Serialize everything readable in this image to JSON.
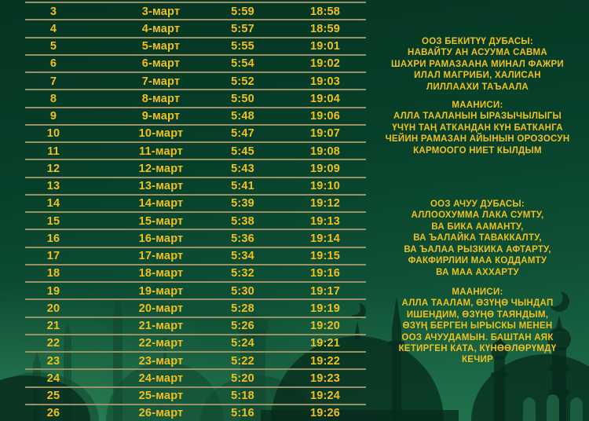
{
  "colors": {
    "background_top": "#053522",
    "background_bottom": "#1e6f4a",
    "text_gold": "#f0c01d",
    "row_line": "#9a9164",
    "silhouette_near": "#062c1c",
    "silhouette_far": "#11472f"
  },
  "schedule_table": {
    "rows": [
      {
        "day": "3",
        "date": "3-март",
        "suhoor": "5:59",
        "iftar": "18:58"
      },
      {
        "day": "4",
        "date": "4-март",
        "suhoor": "5:57",
        "iftar": "18:59"
      },
      {
        "day": "5",
        "date": "5-март",
        "suhoor": "5:55",
        "iftar": "19:01"
      },
      {
        "day": "6",
        "date": "6-март",
        "suhoor": "5:54",
        "iftar": "19:02"
      },
      {
        "day": "7",
        "date": "7-март",
        "suhoor": "5:52",
        "iftar": "19:03"
      },
      {
        "day": "8",
        "date": "8-март",
        "suhoor": "5:50",
        "iftar": "19:04"
      },
      {
        "day": "9",
        "date": "9-март",
        "suhoor": "5:48",
        "iftar": "19:06"
      },
      {
        "day": "10",
        "date": "10-март",
        "suhoor": "5:47",
        "iftar": "19:07"
      },
      {
        "day": "11",
        "date": "11-март",
        "suhoor": "5:45",
        "iftar": "19:08"
      },
      {
        "day": "12",
        "date": "12-март",
        "suhoor": "5:43",
        "iftar": "19:09"
      },
      {
        "day": "13",
        "date": "13-март",
        "suhoor": "5:41",
        "iftar": "19:10"
      },
      {
        "day": "14",
        "date": "14-март",
        "suhoor": "5:39",
        "iftar": "19:12"
      },
      {
        "day": "15",
        "date": "15-март",
        "suhoor": "5:38",
        "iftar": "19:13"
      },
      {
        "day": "16",
        "date": "16-март",
        "suhoor": "5:36",
        "iftar": "19:14"
      },
      {
        "day": "17",
        "date": "17-март",
        "suhoor": "5:34",
        "iftar": "19:15"
      },
      {
        "day": "18",
        "date": "18-март",
        "suhoor": "5:32",
        "iftar": "19:16"
      },
      {
        "day": "19",
        "date": "19-март",
        "suhoor": "5:30",
        "iftar": "19:17"
      },
      {
        "day": "20",
        "date": "20-март",
        "suhoor": "5:28",
        "iftar": "19:19"
      },
      {
        "day": "21",
        "date": "21-март",
        "suhoor": "5:26",
        "iftar": "19:20"
      },
      {
        "day": "22",
        "date": "22-март",
        "suhoor": "5:24",
        "iftar": "19:21"
      },
      {
        "day": "23",
        "date": "23-март",
        "suhoor": "5:22",
        "iftar": "19:22"
      },
      {
        "day": "24",
        "date": "24-март",
        "suhoor": "5:20",
        "iftar": "19:23"
      },
      {
        "day": "25",
        "date": "25-март",
        "suhoor": "5:18",
        "iftar": "19:24"
      },
      {
        "day": "26",
        "date": "26-март",
        "suhoor": "5:16",
        "iftar": "19:26"
      }
    ]
  },
  "right_column": {
    "sections": [
      {
        "name": "fast-closing-dua",
        "title": "ООЗ БЕКИТҮҮ ДУБАСЫ:",
        "lines": [
          "НАВАЙТУ АН АСУУМА САВМА",
          "ШАХРИ РАМАЗААНА МИНАЛ ФАЖРИ",
          "ИЛАЛ МАГРИБИ, ХАЛИСАН",
          "ЛИЛЛААХИ ТАЪААЛА"
        ]
      },
      {
        "name": "fast-closing-meaning",
        "title": "МААНИСИ:",
        "lines": [
          "АЛЛА ТААЛАНЫН ЫРАЗЫЧЫЛЫГЫ",
          "ҮЧҮН ТАҢ АТКАНДАН КҮН БАТКАНГА",
          "ЧЕЙИН РАМАЗАН АЙЫНЫН ОРОЗОСУН",
          "КАРМООГО НИЕТ КЫЛДЫМ"
        ]
      },
      {
        "name": "fast-opening-dua",
        "title": "ООЗ АЧУУ ДУБАСЫ:",
        "lines": [
          "АЛЛООХУММА ЛАКА СУМТУ,",
          "ВА БИКА ААМАНТУ,",
          "ВА ЪАЛАЙКА ТАВАККАЛТУ,",
          "ВА ЪАЛАА РЫЗКИКА АФТАРТУ,",
          "ФАКФИРЛИИ МАА КОДДАМТУ",
          "ВА МАА АХХАРТУ"
        ]
      },
      {
        "name": "fast-opening-meaning",
        "title": "МААНИСИ:",
        "lines": [
          "АЛЛА ТААЛАМ, ӨЗҮҢӨ ЧЫНДАП",
          "ИШЕНДИМ, ӨЗҮҢӨ ТАЯНДЫМ,",
          "ӨЗҮҢ БЕРГЕН ЫРЫСКЫ МЕНЕН",
          "ООЗ АЧУУДАМЫН. БАШТАН АЯК",
          "КЕТИРГЕН КАТА, КҮНӨӨЛӨРҮМДҮ",
          "КЕЧИР"
        ]
      }
    ]
  },
  "background": {
    "icons": [
      "mosque-silhouette",
      "crescent-moon-icon"
    ]
  }
}
